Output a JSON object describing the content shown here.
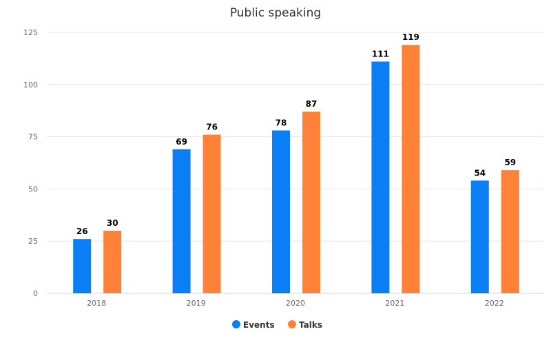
{
  "chart_data": {
    "type": "bar",
    "title": "Public speaking",
    "categories": [
      "2018",
      "2019",
      "2020",
      "2021",
      "2022"
    ],
    "series": [
      {
        "name": "Events",
        "color": "#0a7ff5",
        "values": [
          26,
          69,
          78,
          111,
          54
        ]
      },
      {
        "name": "Talks",
        "color": "#ff8238",
        "values": [
          30,
          76,
          87,
          119,
          59
        ]
      }
    ],
    "yticks": [
      0,
      25,
      50,
      75,
      100,
      125
    ],
    "ylim": [
      0,
      125
    ],
    "xlabel": "",
    "ylabel": "",
    "grid": true,
    "legend": "bottom-center"
  }
}
